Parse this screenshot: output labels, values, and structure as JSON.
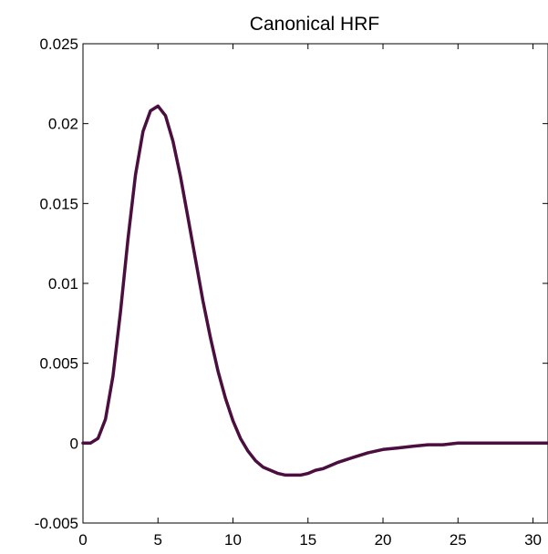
{
  "chart_data": {
    "type": "line",
    "title": "Canonical HRF",
    "xlabel": "",
    "ylabel": "",
    "xlim": [
      0,
      31
    ],
    "ylim": [
      -0.005,
      0.025
    ],
    "xticks": [
      0,
      5,
      10,
      15,
      20,
      25,
      30
    ],
    "yticks": [
      -0.005,
      0,
      0.005,
      0.01,
      0.015,
      0.02,
      0.025
    ],
    "ytick_labels": [
      "-0.005",
      "0",
      "0.005",
      "0.01",
      "0.015",
      "0.02",
      "0.025"
    ],
    "xtick_labels": [
      "0",
      "5",
      "10",
      "15",
      "20",
      "25",
      "30"
    ],
    "grid": false,
    "line_color": "#4b0f3f",
    "series": [
      {
        "x": [
          0,
          0.5,
          1,
          1.5,
          2,
          2.5,
          3,
          3.5,
          4,
          4.5,
          5,
          5.5,
          6,
          6.5,
          7,
          7.5,
          8,
          8.5,
          9,
          9.5,
          10,
          10.5,
          11,
          11.5,
          12,
          12.5,
          13,
          13.5,
          14,
          14.5,
          15,
          15.5,
          16,
          16.5,
          17,
          18,
          19,
          20,
          21,
          22,
          23,
          24,
          25,
          26,
          27,
          28,
          29,
          30,
          31
        ],
        "values": [
          0,
          0,
          0.0003,
          0.0015,
          0.0042,
          0.0082,
          0.0128,
          0.0168,
          0.0195,
          0.0208,
          0.0211,
          0.0205,
          0.0189,
          0.0167,
          0.0141,
          0.0115,
          0.0089,
          0.0066,
          0.0045,
          0.0028,
          0.0014,
          0.0003,
          -0.0005,
          -0.0011,
          -0.0015,
          -0.0017,
          -0.0019,
          -0.002,
          -0.002,
          -0.002,
          -0.0019,
          -0.0017,
          -0.0016,
          -0.0014,
          -0.0012,
          -0.0009,
          -0.0006,
          -0.0004,
          -0.0003,
          -0.0002,
          -0.0001,
          -0.0001,
          0,
          0,
          0,
          0,
          0,
          0,
          0
        ]
      }
    ]
  }
}
